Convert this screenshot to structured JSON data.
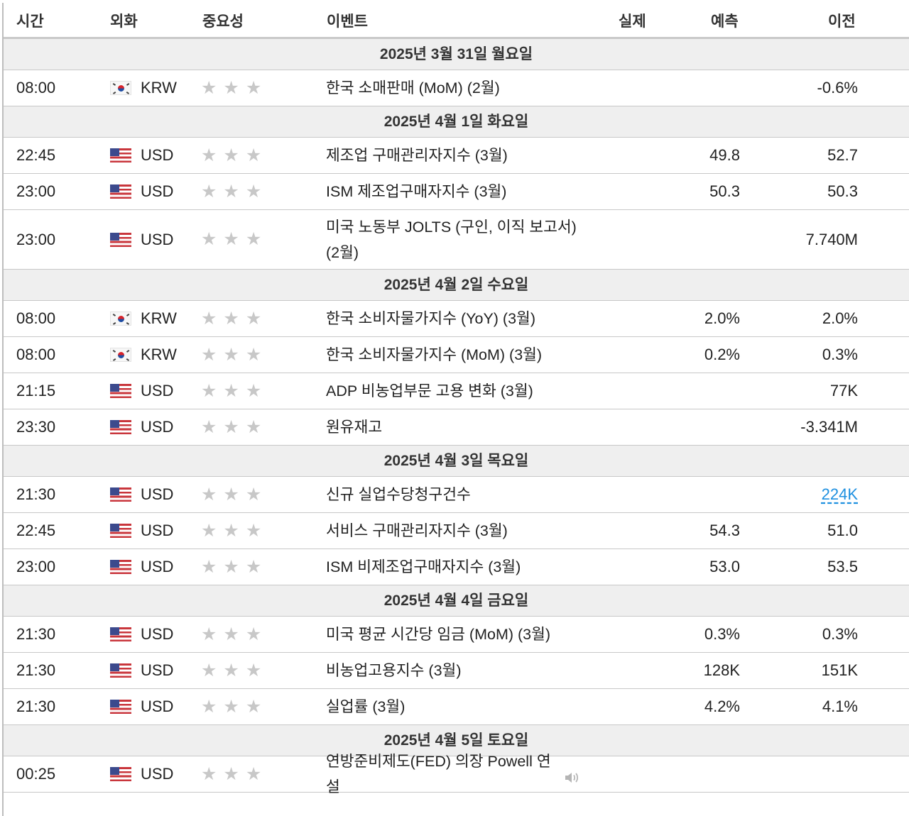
{
  "header": {
    "time": "시간",
    "currency": "외화",
    "importance": "중요성",
    "event": "이벤트",
    "actual": "실제",
    "forecast": "예측",
    "previous": "이전"
  },
  "days": [
    {
      "date": "2025년 3월 31일 월요일",
      "events": [
        {
          "time": "08:00",
          "flag": "kr-flag-icon",
          "currency": "KRW",
          "event": "한국 소매판매 (MoM) (2월)",
          "actual": "",
          "forecast": "",
          "previous": "-0.6%"
        }
      ]
    },
    {
      "date": "2025년 4월 1일 화요일",
      "events": [
        {
          "time": "22:45",
          "flag": "us-flag-icon",
          "currency": "USD",
          "event": "제조업 구매관리자지수 (3월)",
          "actual": "",
          "forecast": "49.8",
          "previous": "52.7"
        },
        {
          "time": "23:00",
          "flag": "us-flag-icon",
          "currency": "USD",
          "event": "ISM 제조업구매자지수 (3월)",
          "actual": "",
          "forecast": "50.3",
          "previous": "50.3"
        },
        {
          "time": "23:00",
          "flag": "us-flag-icon",
          "currency": "USD",
          "event": "미국 노동부 JOLTS (구인, 이직 보고서) (2월)",
          "actual": "",
          "forecast": "",
          "previous": "7.740M"
        }
      ]
    },
    {
      "date": "2025년 4월 2일 수요일",
      "events": [
        {
          "time": "08:00",
          "flag": "kr-flag-icon",
          "currency": "KRW",
          "event": "한국 소비자물가지수 (YoY) (3월)",
          "actual": "",
          "forecast": "2.0%",
          "previous": "2.0%"
        },
        {
          "time": "08:00",
          "flag": "kr-flag-icon",
          "currency": "KRW",
          "event": "한국 소비자물가지수 (MoM) (3월)",
          "actual": "",
          "forecast": "0.2%",
          "previous": "0.3%"
        },
        {
          "time": "21:15",
          "flag": "us-flag-icon",
          "currency": "USD",
          "event": "ADP 비농업부문 고용 변화 (3월)",
          "actual": "",
          "forecast": "",
          "previous": "77K"
        },
        {
          "time": "23:30",
          "flag": "us-flag-icon",
          "currency": "USD",
          "event": "원유재고",
          "actual": "",
          "forecast": "",
          "previous": "-3.341M"
        }
      ]
    },
    {
      "date": "2025년 4월 3일 목요일",
      "events": [
        {
          "time": "21:30",
          "flag": "us-flag-icon",
          "currency": "USD",
          "event": "신규 실업수당청구건수",
          "actual": "",
          "forecast": "",
          "previous": "224K",
          "previous_link": true
        },
        {
          "time": "22:45",
          "flag": "us-flag-icon",
          "currency": "USD",
          "event": "서비스 구매관리자지수 (3월)",
          "actual": "",
          "forecast": "54.3",
          "previous": "51.0"
        },
        {
          "time": "23:00",
          "flag": "us-flag-icon",
          "currency": "USD",
          "event": "ISM 비제조업구매자지수 (3월)",
          "actual": "",
          "forecast": "53.0",
          "previous": "53.5"
        }
      ]
    },
    {
      "date": "2025년 4월 4일 금요일",
      "events": [
        {
          "time": "21:30",
          "flag": "us-flag-icon",
          "currency": "USD",
          "event": "미국 평균 시간당 임금 (MoM) (3월)",
          "actual": "",
          "forecast": "0.3%",
          "previous": "0.3%"
        },
        {
          "time": "21:30",
          "flag": "us-flag-icon",
          "currency": "USD",
          "event": "비농업고용지수 (3월)",
          "actual": "",
          "forecast": "128K",
          "previous": "151K"
        },
        {
          "time": "21:30",
          "flag": "us-flag-icon",
          "currency": "USD",
          "event": "실업률 (3월)",
          "actual": "",
          "forecast": "4.2%",
          "previous": "4.1%"
        }
      ]
    },
    {
      "date": "2025년 4월 5일 토요일",
      "events": [
        {
          "time": "00:25",
          "flag": "us-flag-icon",
          "currency": "USD",
          "event": "연방준비제도(FED) 의장 Powell 연설",
          "actual": "",
          "forecast": "",
          "previous": "",
          "speech_icon": "speaker-icon"
        }
      ]
    }
  ],
  "importance_icon": "star-icon",
  "colors": {
    "date_row_bg": "#efefef",
    "star": "#c8c8c8",
    "link": "#1e90e0",
    "border": "#c8c8c8"
  }
}
